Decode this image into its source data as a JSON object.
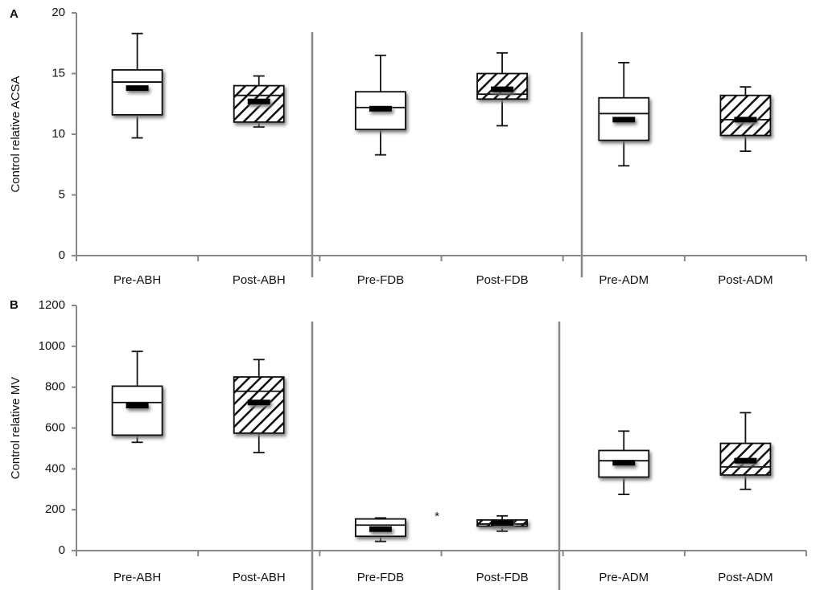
{
  "chart_data": [
    {
      "type": "box",
      "panel_label": "A",
      "y_label": "Control relative ACSA",
      "ylim": [
        0,
        20
      ],
      "yticks": [
        0,
        5,
        10,
        15,
        20
      ],
      "categories": [
        "Pre-ABH",
        "Post-ABH",
        "Pre-FDB",
        "Post-FDB",
        "Pre-ADM",
        "Post-ADM"
      ],
      "fills": [
        "white",
        "hatch",
        "white",
        "hatch",
        "white",
        "hatch"
      ],
      "low": [
        9.7,
        10.6,
        8.3,
        10.7,
        7.4,
        8.6
      ],
      "q1": [
        11.6,
        11.0,
        10.4,
        12.9,
        9.5,
        9.9
      ],
      "median": [
        14.3,
        13.2,
        12.2,
        13.3,
        11.7,
        11.2
      ],
      "q3": [
        15.3,
        14.0,
        13.5,
        15.0,
        13.0,
        13.2
      ],
      "high": [
        18.3,
        14.8,
        16.5,
        16.7,
        15.9,
        13.9
      ],
      "mean": [
        13.8,
        12.7,
        12.1,
        13.7,
        11.2,
        11.2
      ]
    },
    {
      "type": "box",
      "panel_label": "B",
      "y_label": "Control relative MV",
      "ylim": [
        0,
        1200
      ],
      "yticks": [
        0,
        200,
        400,
        600,
        800,
        1000,
        1200
      ],
      "categories": [
        "Pre-ABH",
        "Post-ABH",
        "Pre-FDB",
        "Post-FDB",
        "Pre-ADM",
        "Post-ADM"
      ],
      "fills": [
        "white",
        "hatch",
        "white",
        "hatch",
        "white",
        "hatch"
      ],
      "low": [
        530,
        480,
        45,
        95,
        275,
        300
      ],
      "q1": [
        565,
        575,
        70,
        120,
        360,
        370
      ],
      "median": [
        725,
        780,
        125,
        130,
        440,
        410
      ],
      "q3": [
        805,
        850,
        155,
        150,
        490,
        525
      ],
      "high": [
        975,
        935,
        160,
        170,
        585,
        675
      ],
      "mean": [
        710,
        725,
        105,
        135,
        430,
        440
      ],
      "annotation": "*"
    }
  ]
}
